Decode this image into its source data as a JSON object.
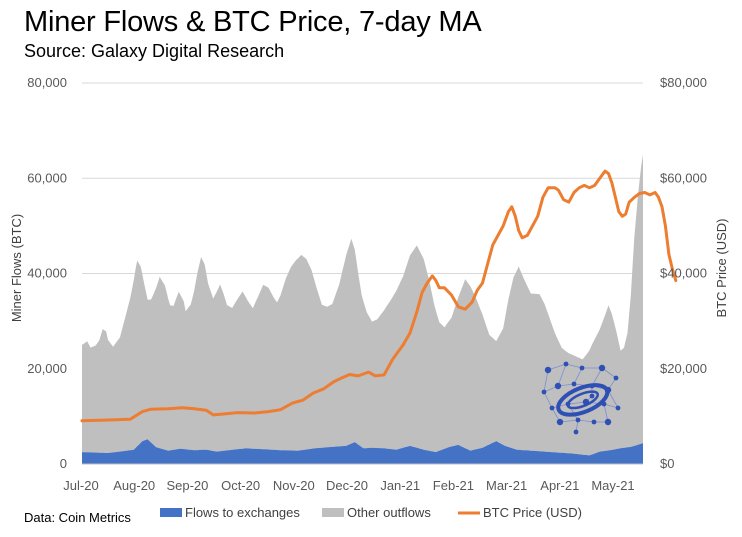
{
  "header": {
    "title": "Miner Flows & BTC Price, 7-day MA",
    "subtitle": "Source: Galaxy Digital Research"
  },
  "footnote": "Data: Coin Metrics",
  "colors": {
    "flows_to_exchanges": "#4472C4",
    "other_outflows": "#BFBFBF",
    "btc_price": "#ED7D31",
    "gridline": "#D9D9D9",
    "logo": "#2E4FB4"
  },
  "chart_data": {
    "type": "area",
    "title": "Miner Flows & BTC Price, 7-day MA",
    "subtitle": "Source: Galaxy Digital Research",
    "x_range": [
      "2020-07-01",
      "2021-05-20"
    ],
    "xlabel": "",
    "ylabel": "Miner Flows (BTC)",
    "ylabel_right": "BTC Price (USD)",
    "ylim": [
      0,
      80000
    ],
    "ylim_right": [
      0,
      80000
    ],
    "yticks": [
      0,
      20000,
      40000,
      60000,
      80000
    ],
    "ytick_labels": [
      "0",
      "20,000",
      "40,000",
      "60,000",
      "80,000"
    ],
    "yticks_right_labels": [
      "$0",
      "$20,000",
      "$40,000",
      "$60,000",
      "$80,000"
    ],
    "categories": [
      "Jul-20",
      "Aug-20",
      "Sep-20",
      "Oct-20",
      "Nov-20",
      "Dec-20",
      "Jan-21",
      "Feb-21",
      "Mar-21",
      "Apr-21",
      "May-21"
    ],
    "grid": true,
    "legend_position": "bottom",
    "series": [
      {
        "name": "Flows to exchanges",
        "kind": "stacked-area",
        "points": [
          [
            0,
            2500
          ],
          [
            8,
            2400
          ],
          [
            15,
            2300
          ],
          [
            22,
            2600
          ],
          [
            30,
            3000
          ],
          [
            35,
            4800
          ],
          [
            38,
            5200
          ],
          [
            43,
            3500
          ],
          [
            50,
            2800
          ],
          [
            57,
            3200
          ],
          [
            65,
            2900
          ],
          [
            72,
            3000
          ],
          [
            78,
            2600
          ],
          [
            85,
            2900
          ],
          [
            95,
            3300
          ],
          [
            105,
            3100
          ],
          [
            115,
            2900
          ],
          [
            125,
            2800
          ],
          [
            135,
            3300
          ],
          [
            145,
            3600
          ],
          [
            153,
            3800
          ],
          [
            158,
            4600
          ],
          [
            163,
            3300
          ],
          [
            168,
            3400
          ],
          [
            175,
            3300
          ],
          [
            182,
            3000
          ],
          [
            190,
            3800
          ],
          [
            198,
            3000
          ],
          [
            205,
            2500
          ],
          [
            213,
            3600
          ],
          [
            218,
            4000
          ],
          [
            225,
            2800
          ],
          [
            232,
            3400
          ],
          [
            240,
            4800
          ],
          [
            245,
            3800
          ],
          [
            252,
            3000
          ],
          [
            260,
            2800
          ],
          [
            268,
            2600
          ],
          [
            276,
            2400
          ],
          [
            284,
            2200
          ],
          [
            289,
            2000
          ],
          [
            294,
            1800
          ],
          [
            300,
            2600
          ],
          [
            306,
            2900
          ],
          [
            312,
            3300
          ],
          [
            318,
            3600
          ],
          [
            322,
            4000
          ],
          [
            325,
            4400
          ]
        ]
      },
      {
        "name": "Other outflows",
        "kind": "stacked-area",
        "points": [
          [
            0,
            22500
          ],
          [
            3,
            23300
          ],
          [
            5,
            22000
          ],
          [
            8,
            22500
          ],
          [
            10,
            23600
          ],
          [
            12,
            26000
          ],
          [
            14,
            25500
          ],
          [
            15,
            23800
          ],
          [
            18,
            22200
          ],
          [
            22,
            24000
          ],
          [
            25,
            28000
          ],
          [
            28,
            32000
          ],
          [
            31,
            37500
          ],
          [
            32,
            39000
          ],
          [
            34,
            37000
          ],
          [
            36,
            33000
          ],
          [
            38,
            29300
          ],
          [
            40,
            30000
          ],
          [
            43,
            33500
          ],
          [
            45,
            36000
          ],
          [
            48,
            34500
          ],
          [
            51,
            30500
          ],
          [
            53,
            30200
          ],
          [
            56,
            33000
          ],
          [
            59,
            31000
          ],
          [
            60,
            29000
          ],
          [
            63,
            30500
          ],
          [
            65,
            33500
          ],
          [
            67,
            37500
          ],
          [
            69,
            40500
          ],
          [
            71,
            39000
          ],
          [
            73,
            35000
          ],
          [
            76,
            32000
          ],
          [
            78,
            33500
          ],
          [
            80,
            35000
          ],
          [
            82,
            33000
          ],
          [
            84,
            30500
          ],
          [
            87,
            29800
          ],
          [
            90,
            31500
          ],
          [
            93,
            33000
          ],
          [
            96,
            31000
          ],
          [
            99,
            29500
          ],
          [
            102,
            32000
          ],
          [
            105,
            34500
          ],
          [
            108,
            34000
          ],
          [
            111,
            32000
          ],
          [
            113,
            31000
          ],
          [
            115,
            32500
          ],
          [
            118,
            36000
          ],
          [
            121,
            38500
          ],
          [
            124,
            40000
          ],
          [
            127,
            41000
          ],
          [
            130,
            40000
          ],
          [
            133,
            37500
          ],
          [
            136,
            33500
          ],
          [
            139,
            30000
          ],
          [
            142,
            29500
          ],
          [
            145,
            30000
          ],
          [
            149,
            34000
          ],
          [
            153,
            40000
          ],
          [
            156,
            43000
          ],
          [
            158,
            40500
          ],
          [
            160,
            36000
          ],
          [
            162,
            32000
          ],
          [
            165,
            28500
          ],
          [
            168,
            26500
          ],
          [
            171,
            27000
          ],
          [
            175,
            29000
          ],
          [
            180,
            32000
          ],
          [
            186,
            36000
          ],
          [
            190,
            40000
          ],
          [
            194,
            42500
          ],
          [
            198,
            40000
          ],
          [
            201,
            36000
          ],
          [
            204,
            31000
          ],
          [
            207,
            27000
          ],
          [
            210,
            25500
          ],
          [
            214,
            27000
          ],
          [
            218,
            31000
          ],
          [
            222,
            35500
          ],
          [
            225,
            34500
          ],
          [
            228,
            32000
          ],
          [
            232,
            28000
          ],
          [
            236,
            23000
          ],
          [
            240,
            21000
          ],
          [
            244,
            24500
          ],
          [
            247,
            31000
          ],
          [
            250,
            36000
          ],
          [
            253,
            38500
          ],
          [
            256,
            36000
          ],
          [
            260,
            33000
          ],
          [
            265,
            33000
          ],
          [
            268,
            31000
          ],
          [
            271,
            28000
          ],
          [
            274,
            25000
          ],
          [
            278,
            22000
          ],
          [
            282,
            21000
          ],
          [
            286,
            20500
          ],
          [
            290,
            20000
          ],
          [
            293,
            21500
          ],
          [
            297,
            24000
          ],
          [
            300,
            25700
          ],
          [
            303,
            28500
          ],
          [
            305,
            30500
          ],
          [
            307,
            28500
          ],
          [
            310,
            24000
          ],
          [
            312,
            20500
          ],
          [
            314,
            21000
          ],
          [
            316,
            24000
          ],
          [
            318,
            32000
          ],
          [
            320,
            44000
          ],
          [
            322,
            52000
          ],
          [
            324,
            58500
          ],
          [
            325,
            60500
          ]
        ]
      },
      {
        "name": "BTC Price (USD)",
        "kind": "line",
        "axis": "right",
        "points": [
          [
            0,
            9100
          ],
          [
            10,
            9200
          ],
          [
            20,
            9300
          ],
          [
            28,
            9400
          ],
          [
            35,
            11000
          ],
          [
            40,
            11500
          ],
          [
            50,
            11600
          ],
          [
            58,
            11800
          ],
          [
            65,
            11600
          ],
          [
            72,
            11300
          ],
          [
            76,
            10300
          ],
          [
            82,
            10500
          ],
          [
            90,
            10800
          ],
          [
            100,
            10700
          ],
          [
            108,
            11000
          ],
          [
            115,
            11400
          ],
          [
            122,
            12800
          ],
          [
            128,
            13400
          ],
          [
            134,
            14900
          ],
          [
            140,
            15800
          ],
          [
            146,
            17300
          ],
          [
            150,
            18000
          ],
          [
            155,
            18800
          ],
          [
            160,
            18500
          ],
          [
            166,
            19300
          ],
          [
            170,
            18500
          ],
          [
            175,
            18700
          ],
          [
            180,
            22000
          ],
          [
            186,
            25000
          ],
          [
            190,
            27500
          ],
          [
            194,
            32000
          ],
          [
            197,
            36000
          ],
          [
            200,
            38000
          ],
          [
            203,
            39500
          ],
          [
            205,
            38500
          ],
          [
            207,
            37000
          ],
          [
            210,
            37000
          ],
          [
            214,
            35500
          ],
          [
            218,
            33000
          ],
          [
            222,
            32500
          ],
          [
            226,
            34000
          ],
          [
            229,
            36500
          ],
          [
            232,
            38000
          ],
          [
            235,
            42000
          ],
          [
            238,
            46000
          ],
          [
            241,
            48000
          ],
          [
            244,
            50000
          ],
          [
            247,
            53000
          ],
          [
            249,
            54000
          ],
          [
            251,
            52000
          ],
          [
            253,
            49000
          ],
          [
            255,
            47500
          ],
          [
            258,
            48000
          ],
          [
            261,
            50000
          ],
          [
            264,
            52000
          ],
          [
            267,
            56000
          ],
          [
            270,
            58000
          ],
          [
            274,
            58000
          ],
          [
            276,
            57500
          ],
          [
            279,
            55500
          ],
          [
            282,
            55000
          ],
          [
            285,
            57000
          ],
          [
            288,
            58000
          ],
          [
            291,
            58500
          ],
          [
            294,
            58000
          ],
          [
            297,
            58500
          ],
          [
            300,
            60000
          ],
          [
            303,
            61500
          ],
          [
            305,
            61000
          ],
          [
            307,
            59000
          ],
          [
            309,
            56000
          ],
          [
            311,
            53000
          ],
          [
            313,
            52000
          ],
          [
            315,
            52500
          ],
          [
            317,
            55000
          ],
          [
            320,
            56000
          ],
          [
            323,
            56800
          ],
          [
            326,
            57000
          ],
          [
            329,
            56500
          ],
          [
            332,
            57000
          ],
          [
            334,
            56000
          ],
          [
            336,
            54000
          ],
          [
            338,
            50000
          ],
          [
            340,
            44000
          ],
          [
            342,
            41000
          ],
          [
            344,
            38500
          ]
        ]
      }
    ]
  }
}
